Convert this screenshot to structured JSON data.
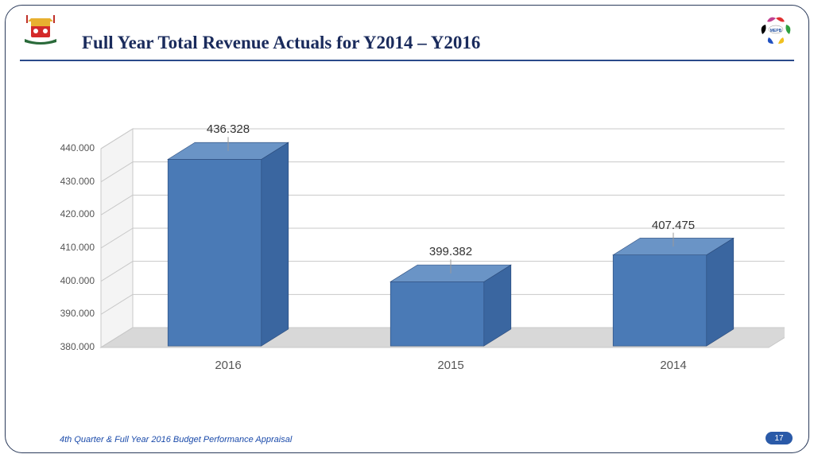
{
  "title": "Full Year Total Revenue Actuals for Y2014 – Y2016",
  "footer": "4th Quarter & Full Year 2016 Budget Performance Appraisal",
  "page_number": "17",
  "chart": {
    "type": "bar3d",
    "categories": [
      "2016",
      "2015",
      "2014"
    ],
    "values": [
      436.328,
      399.382,
      407.475
    ],
    "value_labels": [
      "436.328",
      "399.382",
      "407.475"
    ],
    "bar_face_color": "#4a7ab6",
    "bar_top_color": "#6a94c6",
    "bar_side_color": "#3a66a0",
    "floor_color": "#d8d8d8",
    "wall_color": "#f4f4f4",
    "grid_color": "#c8c8c8",
    "ymin": 380.0,
    "ymax": 440.0,
    "ytick_step": 10.0,
    "ytick_labels": [
      "380.000",
      "390.000",
      "400.000",
      "410.000",
      "420.000",
      "430.000",
      "440.000"
    ],
    "xlabel_fontsize": 15,
    "ylabel_fontsize": 12,
    "datalabel_fontsize": 15,
    "leader_color": "#999999"
  },
  "title_color": "#1a2b5c",
  "rule_color": "#2a4a8a",
  "border_color": "#2a3a5a",
  "footer_color": "#1a4aaa",
  "badge_bg": "#2a5aa8"
}
